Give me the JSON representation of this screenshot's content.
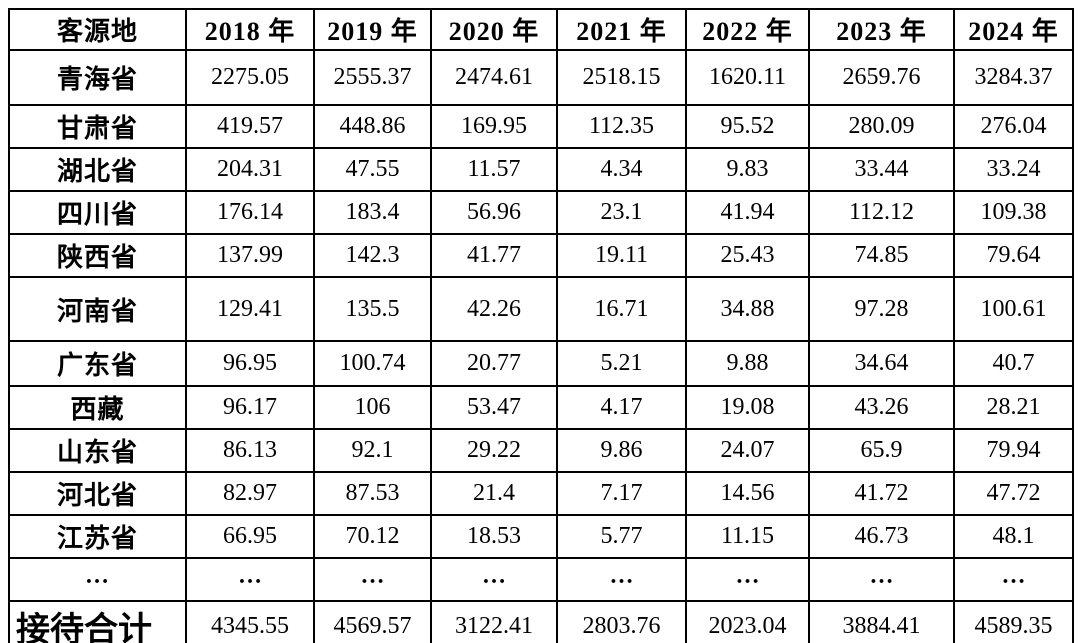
{
  "table": {
    "header": [
      "客源地",
      "2018 年",
      "2019 年",
      "2020 年",
      "2021 年",
      "2022 年",
      "2023 年",
      "2024 年"
    ],
    "rows": [
      [
        "青海省",
        "2275.05",
        "2555.37",
        "2474.61",
        "2518.15",
        "1620.11",
        "2659.76",
        "3284.37"
      ],
      [
        "甘肃省",
        "419.57",
        "448.86",
        "169.95",
        "112.35",
        "95.52",
        "280.09",
        "276.04"
      ],
      [
        "湖北省",
        "204.31",
        "47.55",
        "11.57",
        "4.34",
        "9.83",
        "33.44",
        "33.24"
      ],
      [
        "四川省",
        "176.14",
        "183.4",
        "56.96",
        "23.1",
        "41.94",
        "112.12",
        "109.38"
      ],
      [
        "陕西省",
        "137.99",
        "142.3",
        "41.77",
        "19.11",
        "25.43",
        "74.85",
        "79.64"
      ],
      [
        "河南省",
        "129.41",
        "135.5",
        "42.26",
        "16.71",
        "34.88",
        "97.28",
        "100.61"
      ],
      [
        "广东省",
        "96.95",
        "100.74",
        "20.77",
        "5.21",
        "9.88",
        "34.64",
        "40.7"
      ],
      [
        "西藏",
        "96.17",
        "106",
        "53.47",
        "4.17",
        "19.08",
        "43.26",
        "28.21"
      ],
      [
        "山东省",
        "86.13",
        "92.1",
        "29.22",
        "9.86",
        "24.07",
        "65.9",
        "79.94"
      ],
      [
        "河北省",
        "82.97",
        "87.53",
        "21.4",
        "7.17",
        "14.56",
        "41.72",
        "47.72"
      ],
      [
        "江苏省",
        "66.95",
        "70.12",
        "18.53",
        "5.77",
        "11.15",
        "46.73",
        "48.1"
      ],
      [
        "…",
        "…",
        "…",
        "…",
        "…",
        "…",
        "…",
        "…"
      ],
      [
        "接待合计",
        "4345.55",
        "4569.57",
        "3122.41",
        "2803.76",
        "2023.04",
        "3884.41",
        "4589.35"
      ]
    ]
  },
  "colors": {
    "border": "#000000",
    "text": "#000000",
    "background": "#ffffff"
  }
}
